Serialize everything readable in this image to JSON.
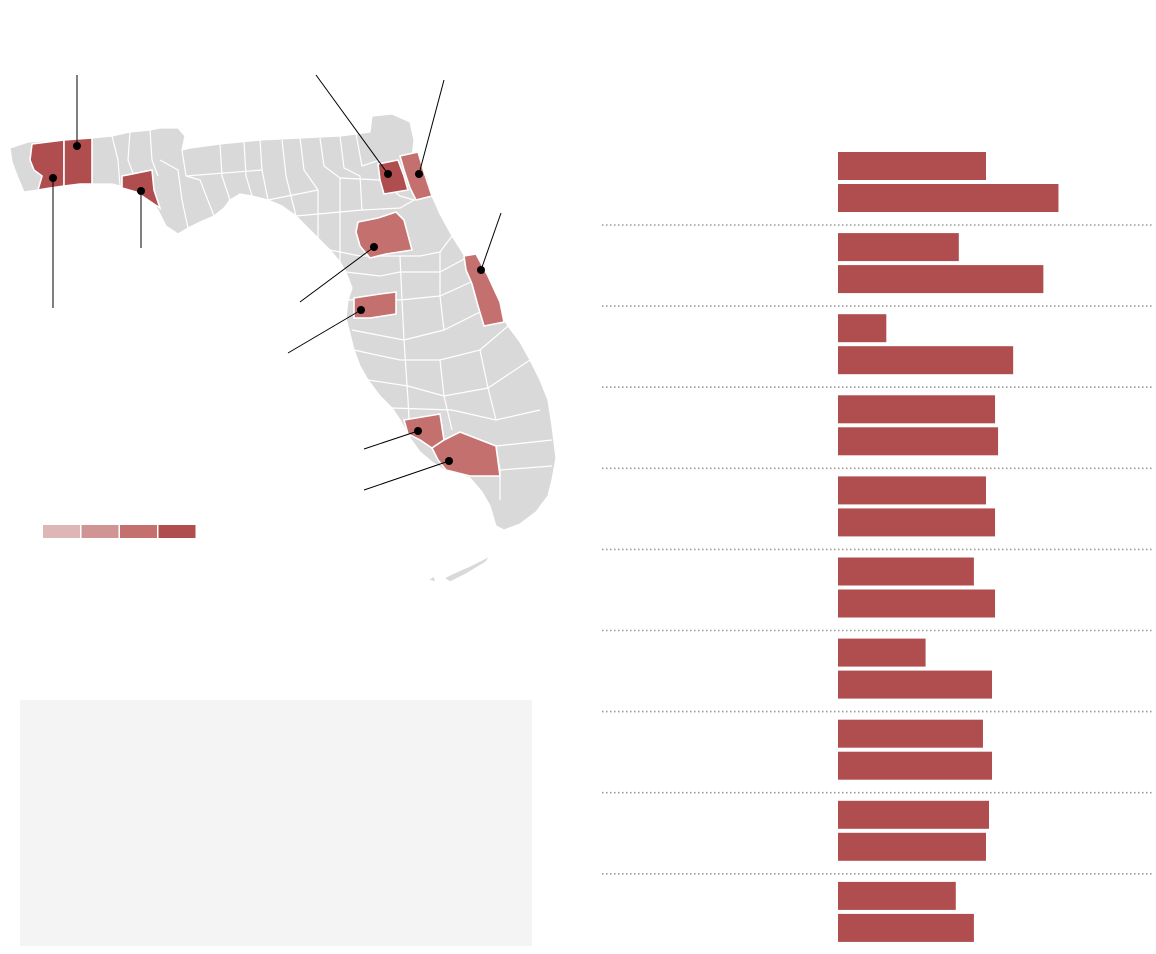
{
  "map": {
    "base_county_color": "#d9d9d9",
    "county_border_color": "#ffffff",
    "legend": {
      "colors": [
        "#dfb6b6",
        "#d19495",
        "#c3706f",
        "#b04d4e"
      ]
    },
    "highlighted_counties": [
      {
        "shade": 3
      },
      {
        "shade": 3
      },
      {
        "shade": 3
      },
      {
        "shade": 3
      },
      {
        "shade": 2
      },
      {
        "shade": 2
      },
      {
        "shade": 2
      },
      {
        "shade": 2
      },
      {
        "shade": 2
      },
      {
        "shade": 2
      }
    ]
  },
  "info_box": {
    "background": "#f4f4f4"
  },
  "chart_data": {
    "type": "bar",
    "bar_color": "#b04d4e",
    "separator_color": "#999999",
    "rows": [
      {
        "values": [
          49,
          73
        ]
      },
      {
        "values": [
          40,
          68
        ]
      },
      {
        "values": [
          16,
          58
        ]
      },
      {
        "values": [
          52,
          53
        ]
      },
      {
        "values": [
          49,
          52
        ]
      },
      {
        "values": [
          45,
          52
        ]
      },
      {
        "values": [
          29,
          51
        ]
      },
      {
        "values": [
          48,
          51
        ]
      },
      {
        "values": [
          50,
          49
        ]
      },
      {
        "values": [
          39,
          45
        ]
      }
    ]
  }
}
